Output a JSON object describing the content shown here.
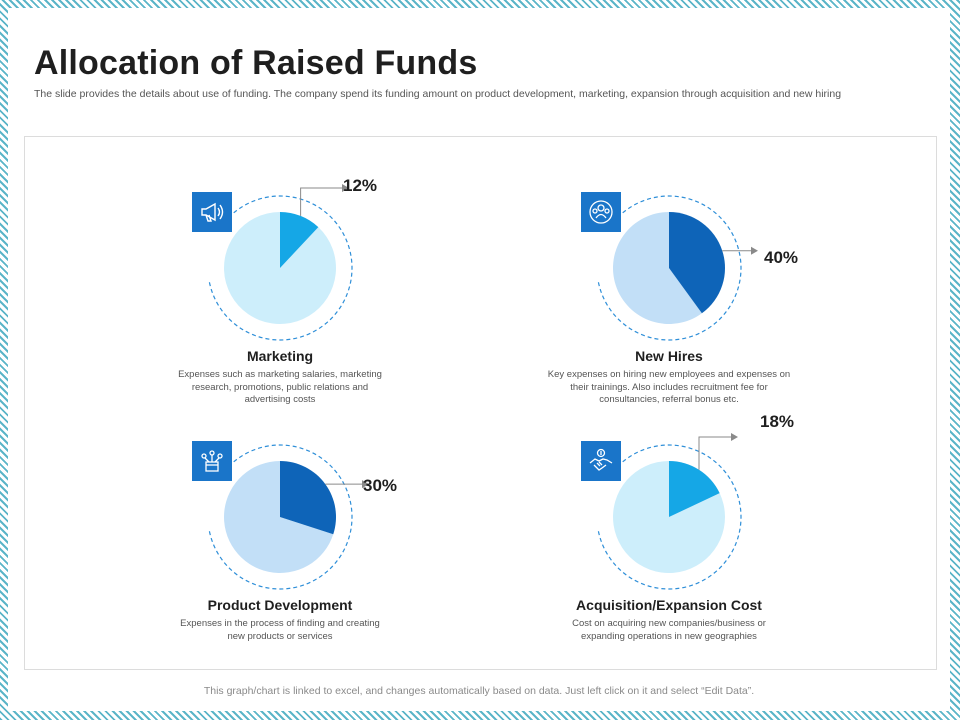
{
  "title": "Allocation of Raised Funds",
  "subtitle": "The slide provides the details about use of funding. The company spend its funding amount on product development, marketing, expansion through acquisition and new hiring",
  "footer": "This graph/chart is linked to excel, and changes automatically based on data. Just left click on it and select “Edit Data”.",
  "colors": {
    "pie_rest_light": "#cdeefb",
    "pie_rest_mid": "#c2dff7",
    "accent_cyan": "#15a7e6",
    "accent_blue": "#0e64b8",
    "icon_bg": "#1a75c9",
    "dashed_ring": "#2f8fd8"
  },
  "chart_data": [
    {
      "type": "pie",
      "title": "Marketing",
      "description": "Expenses such as marketing salaries, marketing research, promotions, public relations and advertising costs",
      "value": 12,
      "label": "12%",
      "icon": "megaphone-icon"
    },
    {
      "type": "pie",
      "title": "New Hires",
      "description": "Key expenses on hiring new employees and expenses on their trainings. Also includes recruitment fee for consultancies, referral bonus etc.",
      "value": 40,
      "label": "40%",
      "icon": "team-icon"
    },
    {
      "type": "pie",
      "title": "Product Development",
      "description": "Expenses in the process of finding and creating new products or services",
      "value": 30,
      "label": "30%",
      "icon": "product-network-icon"
    },
    {
      "type": "pie",
      "title": "Acquisition/Expansion Cost",
      "description": "Cost on acquiring new companies/business or expanding operations in new geographies",
      "value": 18,
      "label": "18%",
      "icon": "handshake-dollar-icon"
    }
  ]
}
